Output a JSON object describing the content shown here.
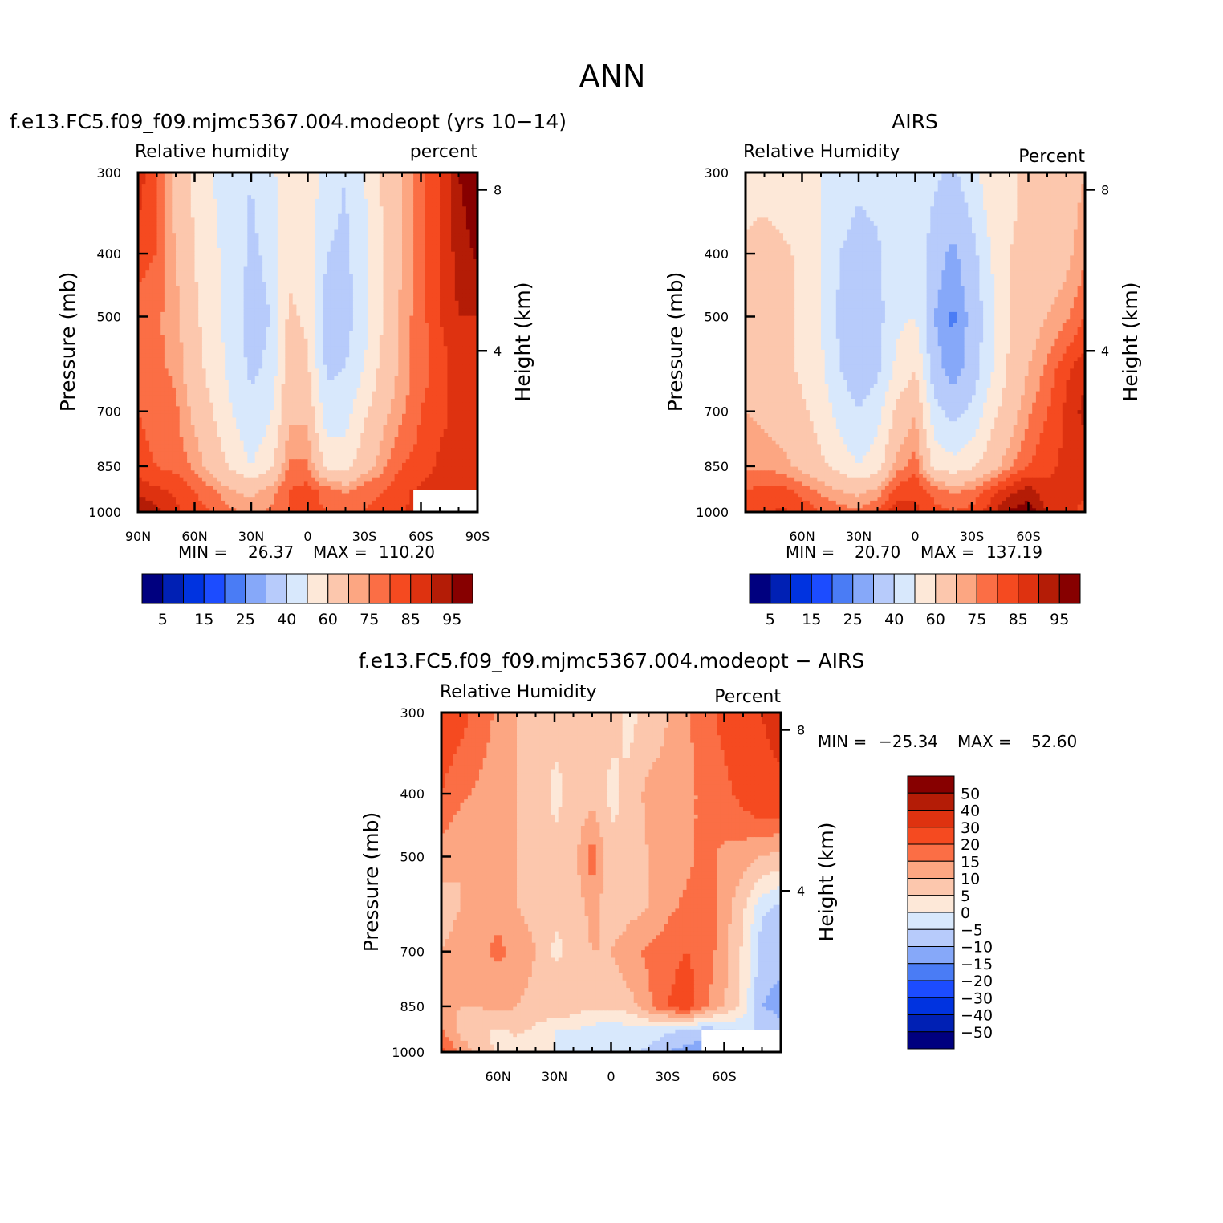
{
  "figure_title": "ANN",
  "colors": {
    "abs_palette": [
      "#00007f",
      "#0020b4",
      "#0033e0",
      "#1c4cff",
      "#4a7cf5",
      "#86a8f9",
      "#b7cbfb",
      "#d8e8fc",
      "#fde8d8",
      "#fcc7ad",
      "#fca682",
      "#fb6e45",
      "#f54a20",
      "#de3210",
      "#b41c06",
      "#870000"
    ],
    "diff_palette": [
      "#00007f",
      "#0020b4",
      "#0033e0",
      "#1c4cff",
      "#4a7cf5",
      "#86a8f9",
      "#b7cbfb",
      "#d8e8fc",
      "#fde8d8",
      "#fcc7ad",
      "#fca682",
      "#fb6e45",
      "#f54a20",
      "#de3210",
      "#b41c06",
      "#870000"
    ]
  },
  "chart_data": [
    {
      "type": "heatmap",
      "panel": "model",
      "title": "f.e13.FC5.f09_f09.mjmc5367.004.modeopt (yrs 10−14)",
      "subtitle_left": "Relative humidity",
      "subtitle_right": "percent",
      "ylabel": "Pressure (mb)",
      "ylabel_right": "Height (km)",
      "xlim": [
        90,
        -90
      ],
      "ylim": [
        1000,
        300
      ],
      "x_ticks": [
        90,
        60,
        30,
        0,
        -30,
        -60,
        -90
      ],
      "x_tick_labels": [
        "90N",
        "60N",
        "30N",
        "0",
        "30S",
        "60S",
        "90S"
      ],
      "y_ticks": [
        300,
        400,
        500,
        700,
        850,
        1000
      ],
      "y_tick_labels": [
        "300",
        "400",
        "500",
        "700",
        "850",
        "1000"
      ],
      "height_ticks": [
        {
          "km": 8,
          "label": "8"
        },
        {
          "km": 4,
          "label": "4"
        }
      ],
      "stats": {
        "min_label": "MIN =",
        "min": "26.37",
        "max_label": "MAX =",
        "max": "110.20"
      },
      "colorbar": {
        "orientation": "horizontal",
        "labels": [
          "5",
          "15",
          "25",
          "40",
          "60",
          "75",
          "85",
          "95"
        ]
      },
      "levels": [
        5,
        10,
        15,
        20,
        25,
        30,
        40,
        50,
        60,
        70,
        75,
        80,
        85,
        90,
        95
      ],
      "grid_lat": [
        90,
        80,
        70,
        60,
        50,
        40,
        30,
        20,
        10,
        0,
        -10,
        -20,
        -30,
        -40,
        -50,
        -60,
        -70,
        -80,
        -90
      ],
      "grid_p": [
        300,
        400,
        500,
        600,
        700,
        850,
        925,
        1000
      ],
      "values": [
        [
          88,
          80,
          66,
          58,
          50,
          44,
          40,
          46,
          60,
          58,
          44,
          40,
          50,
          62,
          70,
          78,
          85,
          95,
          99
        ],
        [
          82,
          80,
          70,
          60,
          52,
          46,
          38,
          42,
          58,
          55,
          40,
          38,
          46,
          60,
          70,
          78,
          85,
          92,
          96
        ],
        [
          78,
          76,
          72,
          62,
          54,
          44,
          36,
          40,
          62,
          58,
          34,
          36,
          46,
          60,
          72,
          78,
          85,
          90,
          90
        ],
        [
          78,
          76,
          74,
          64,
          56,
          46,
          38,
          42,
          66,
          62,
          38,
          40,
          50,
          64,
          72,
          78,
          82,
          88,
          90
        ],
        [
          80,
          78,
          76,
          68,
          60,
          50,
          42,
          48,
          68,
          68,
          44,
          46,
          58,
          68,
          74,
          80,
          84,
          86,
          88
        ],
        [
          82,
          80,
          78,
          74,
          66,
          58,
          50,
          58,
          76,
          76,
          58,
          56,
          66,
          74,
          80,
          82,
          86,
          86,
          86
        ],
        [
          88,
          86,
          84,
          80,
          76,
          70,
          68,
          72,
          80,
          82,
          78,
          74,
          78,
          80,
          84,
          86,
          88,
          88,
          88
        ],
        [
          96,
          92,
          86,
          82,
          80,
          76,
          74,
          76,
          80,
          82,
          80,
          78,
          80,
          82,
          84,
          88,
          90,
          90,
          90
        ]
      ],
      "masked_region": {
        "lat_from": -56,
        "lat_to": -90,
        "p_from": 925,
        "p_to": 1000
      }
    },
    {
      "type": "heatmap",
      "panel": "obs",
      "title": "AIRS",
      "subtitle_left": "Relative Humidity",
      "subtitle_right": "Percent",
      "ylabel": "Pressure (mb)",
      "ylabel_right": "Height (km)",
      "xlim": [
        90,
        -90
      ],
      "ylim": [
        1000,
        300
      ],
      "x_ticks": [
        60,
        30,
        0,
        -30,
        -60
      ],
      "x_tick_labels": [
        "60N",
        "30N",
        "0",
        "30S",
        "60S"
      ],
      "y_ticks": [
        300,
        400,
        500,
        700,
        850,
        1000
      ],
      "y_tick_labels": [
        "300",
        "400",
        "500",
        "700",
        "850",
        "1000"
      ],
      "height_ticks": [
        {
          "km": 8,
          "label": "8"
        },
        {
          "km": 4,
          "label": "4"
        }
      ],
      "stats": {
        "min_label": "MIN =",
        "min": "20.70",
        "max_label": "MAX =",
        "max": "137.19"
      },
      "colorbar": {
        "orientation": "horizontal",
        "labels": [
          "5",
          "15",
          "25",
          "40",
          "60",
          "75",
          "85",
          "95"
        ]
      },
      "levels": [
        5,
        10,
        15,
        20,
        25,
        30,
        40,
        50,
        60,
        70,
        75,
        80,
        85,
        90,
        95
      ],
      "grid_lat": [
        90,
        80,
        70,
        60,
        50,
        40,
        30,
        20,
        10,
        0,
        -10,
        -20,
        -30,
        -40,
        -50,
        -60,
        -70,
        -80,
        -90
      ],
      "grid_p": [
        300,
        400,
        500,
        600,
        700,
        850,
        925,
        1000
      ],
      "values": [
        [
          56,
          56,
          54,
          52,
          50,
          46,
          42,
          44,
          50,
          50,
          42,
          38,
          46,
          56,
          58,
          62,
          62,
          66,
          70
        ],
        [
          62,
          64,
          62,
          58,
          50,
          40,
          36,
          38,
          48,
          48,
          34,
          28,
          36,
          50,
          60,
          62,
          64,
          68,
          74
        ],
        [
          66,
          66,
          64,
          58,
          50,
          38,
          32,
          36,
          48,
          50,
          30,
          24,
          32,
          46,
          60,
          66,
          70,
          74,
          80
        ],
        [
          70,
          66,
          64,
          58,
          52,
          40,
          34,
          38,
          52,
          60,
          34,
          26,
          34,
          48,
          62,
          70,
          76,
          84,
          88
        ],
        [
          70,
          68,
          66,
          62,
          56,
          46,
          40,
          46,
          62,
          70,
          44,
          36,
          42,
          56,
          66,
          74,
          80,
          86,
          92
        ],
        [
          74,
          74,
          72,
          68,
          62,
          56,
          50,
          56,
          72,
          78,
          58,
          54,
          58,
          66,
          74,
          80,
          84,
          86,
          86
        ],
        [
          80,
          82,
          82,
          78,
          74,
          70,
          68,
          72,
          82,
          84,
          78,
          74,
          76,
          82,
          88,
          92,
          86,
          86,
          86
        ],
        [
          82,
          84,
          86,
          84,
          80,
          78,
          76,
          80,
          88,
          86,
          82,
          80,
          82,
          88,
          96,
          98,
          90,
          86,
          84
        ]
      ]
    },
    {
      "type": "heatmap",
      "panel": "difference",
      "title": "f.e13.FC5.f09_f09.mjmc5367.004.modeopt − AIRS",
      "subtitle_left": "Relative Humidity",
      "subtitle_right": "Percent",
      "ylabel": "Pressure (mb)",
      "ylabel_right": "Height (km)",
      "xlim": [
        90,
        -90
      ],
      "ylim": [
        1000,
        300
      ],
      "x_ticks": [
        60,
        30,
        0,
        -30,
        -60
      ],
      "x_tick_labels": [
        "60N",
        "30N",
        "0",
        "30S",
        "60S"
      ],
      "y_ticks": [
        300,
        400,
        500,
        700,
        850,
        1000
      ],
      "y_tick_labels": [
        "300",
        "400",
        "500",
        "700",
        "850",
        "1000"
      ],
      "height_ticks": [
        {
          "km": 8,
          "label": "8"
        },
        {
          "km": 4,
          "label": "4"
        }
      ],
      "stats": {
        "min_label": "MIN =",
        "min": "−25.34",
        "max_label": "MAX =",
        "max": "52.60"
      },
      "colorbar": {
        "orientation": "vertical",
        "labels": [
          "50",
          "40",
          "30",
          "20",
          "15",
          "10",
          "5",
          "0",
          "−5",
          "−10",
          "−15",
          "−20",
          "−30",
          "−40",
          "−50"
        ]
      },
      "levels": [
        -50,
        -40,
        -30,
        -20,
        -15,
        -10,
        -5,
        0,
        5,
        10,
        15,
        20,
        30,
        40,
        50
      ],
      "grid_lat": [
        90,
        80,
        70,
        60,
        50,
        40,
        30,
        20,
        10,
        0,
        -10,
        -20,
        -30,
        -40,
        -50,
        -60,
        -70,
        -80,
        -90
      ],
      "grid_p": [
        300,
        400,
        500,
        600,
        700,
        850,
        925,
        1000
      ],
      "values": [
        [
          24,
          22,
          18,
          14,
          10,
          8,
          6,
          6,
          8,
          6,
          4,
          6,
          10,
          14,
          18,
          22,
          26,
          30,
          36
        ],
        [
          20,
          16,
          14,
          12,
          10,
          8,
          4,
          6,
          8,
          4,
          6,
          12,
          12,
          14,
          16,
          18,
          22,
          26,
          26
        ],
        [
          12,
          10,
          10,
          12,
          10,
          8,
          6,
          8,
          18,
          6,
          6,
          10,
          12,
          14,
          16,
          14,
          12,
          10,
          8
        ],
        [
          8,
          10,
          12,
          14,
          10,
          8,
          6,
          6,
          12,
          6,
          8,
          10,
          14,
          16,
          18,
          12,
          6,
          -4,
          -6
        ],
        [
          10,
          12,
          14,
          16,
          14,
          10,
          4,
          6,
          10,
          10,
          14,
          16,
          18,
          20,
          18,
          12,
          4,
          -8,
          -8
        ],
        [
          12,
          10,
          10,
          12,
          10,
          8,
          10,
          8,
          6,
          6,
          8,
          14,
          20,
          24,
          16,
          10,
          4,
          -10,
          -12
        ],
        [
          16,
          8,
          6,
          4,
          6,
          4,
          0,
          0,
          -2,
          -4,
          -2,
          -2,
          -4,
          -6,
          -8,
          -6,
          -4,
          -6,
          -8
        ],
        [
          22,
          14,
          8,
          4,
          2,
          2,
          0,
          -2,
          -4,
          -4,
          -4,
          -6,
          -10,
          -12,
          -14,
          -8,
          -4,
          -4,
          -4
        ]
      ],
      "masked_region": {
        "lat_from": -48,
        "lat_to": -90,
        "p_from": 925,
        "p_to": 1000
      }
    }
  ]
}
